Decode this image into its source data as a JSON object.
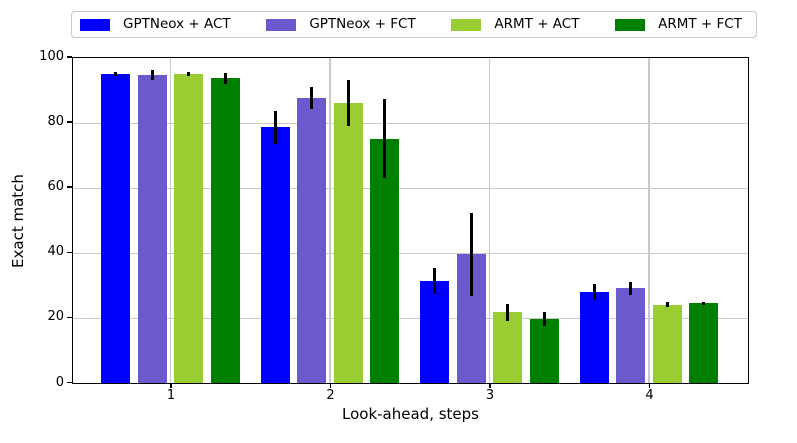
{
  "chart_data": {
    "type": "bar",
    "title": "",
    "xlabel": "Look-ahead, steps",
    "ylabel": "Exact match",
    "categories": [
      "1",
      "2",
      "3",
      "4"
    ],
    "ylim": [
      0,
      100
    ],
    "yticks": [
      0,
      20,
      40,
      60,
      80,
      100
    ],
    "grid": true,
    "legend_position": "top-horizontal",
    "error_bar_color": "#000000",
    "grid_color": "#c9c9c9",
    "series": [
      {
        "name": "GPTNeox + ACT",
        "color": "#0000FF",
        "values": [
          95.5,
          79.0,
          31.5,
          28.2
        ],
        "errors": [
          0.6,
          5.1,
          3.9,
          2.5
        ]
      },
      {
        "name": "GPTNeox + FCT",
        "color": "#6A5ACD",
        "values": [
          95.0,
          88.0,
          39.8,
          29.2
        ],
        "errors": [
          1.6,
          3.3,
          12.8,
          2.1
        ]
      },
      {
        "name": "ARMT + ACT",
        "color": "#9ACD32",
        "values": [
          95.5,
          86.4,
          21.8,
          24.2
        ],
        "errors": [
          0.6,
          7.2,
          2.7,
          0.8
        ]
      },
      {
        "name": "ARMT + FCT",
        "color": "#008000",
        "values": [
          94.0,
          75.4,
          19.7,
          24.6
        ],
        "errors": [
          1.7,
          12.2,
          2.1,
          0.5
        ]
      }
    ]
  }
}
